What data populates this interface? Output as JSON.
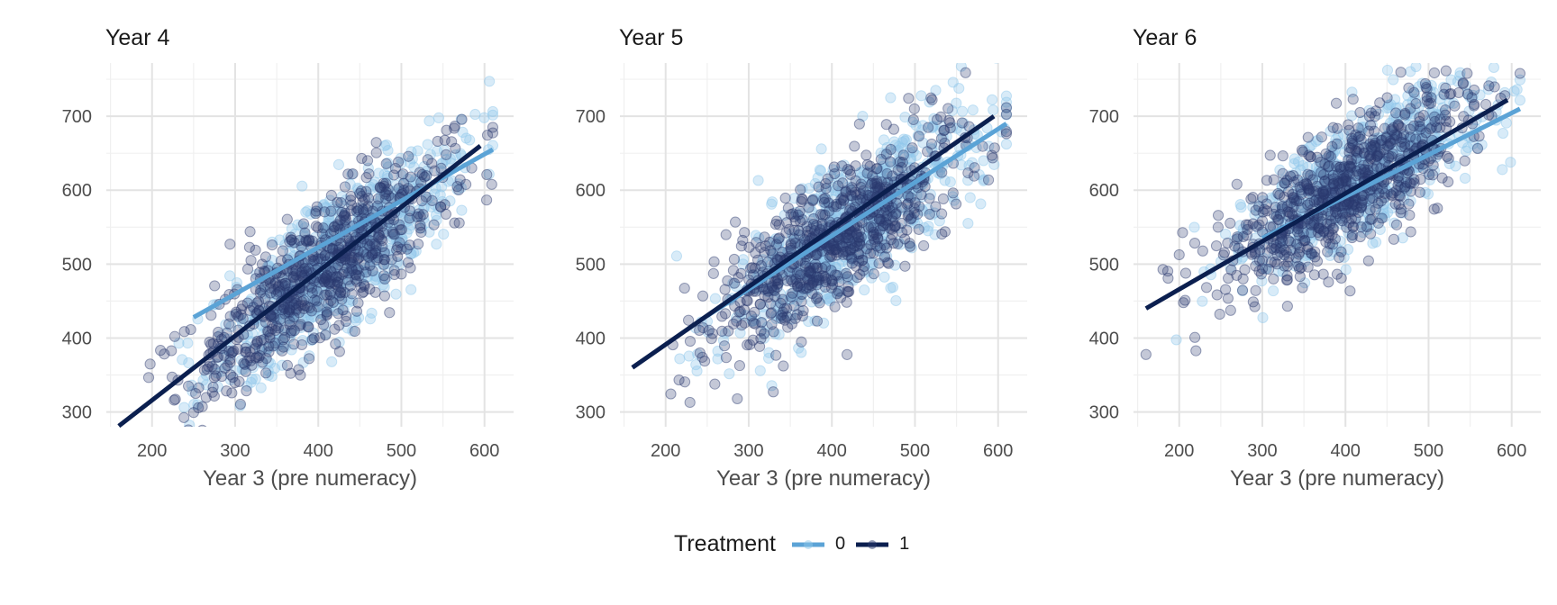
{
  "chart_data": [
    {
      "type": "scatter",
      "title": "Year 4",
      "xlabel": "Year 3 (pre numeracy)",
      "ylabel": "",
      "xlim": [
        145,
        635
      ],
      "ylim": [
        280,
        772
      ],
      "xticks": [
        "200",
        "300",
        "400",
        "500",
        "600"
      ],
      "yticks": [
        "300",
        "400",
        "500",
        "600",
        "700"
      ],
      "grid": true,
      "cloud": {
        "mean_x": 410,
        "sd_x": 75,
        "slope": 0.88,
        "intercept": 135,
        "resid_sd": 45,
        "x_range": [
          160,
          610
        ]
      },
      "series": [
        {
          "name": "0",
          "color": "#5ba3d6",
          "point_color": "#8ec7ea",
          "n": 700,
          "x_shift": 12,
          "fit": {
            "x": [
              250,
              610
            ],
            "y": [
              428,
              655
            ]
          }
        },
        {
          "name": "1",
          "color": "#0b1f4f",
          "point_color": "#2a3a6e",
          "n": 700,
          "x_shift": -8,
          "fit": {
            "x": [
              160,
              595
            ],
            "y": [
              281,
              660
            ]
          }
        }
      ]
    },
    {
      "type": "scatter",
      "title": "Year 5",
      "xlabel": "Year 3 (pre numeracy)",
      "ylabel": "",
      "xlim": [
        145,
        635
      ],
      "ylim": [
        280,
        772
      ],
      "xticks": [
        "200",
        "300",
        "400",
        "500",
        "600"
      ],
      "yticks": [
        "300",
        "400",
        "500",
        "600",
        "700"
      ],
      "grid": true,
      "cloud": {
        "mean_x": 410,
        "sd_x": 75,
        "slope": 0.76,
        "intercept": 230,
        "resid_sd": 45,
        "x_range": [
          160,
          610
        ]
      },
      "series": [
        {
          "name": "0",
          "color": "#5ba3d6",
          "point_color": "#8ec7ea",
          "n": 700,
          "x_shift": 12,
          "fit": {
            "x": [
              250,
              610
            ],
            "y": [
              430,
              690
            ]
          }
        },
        {
          "name": "1",
          "color": "#0b1f4f",
          "point_color": "#2a3a6e",
          "n": 700,
          "x_shift": -8,
          "fit": {
            "x": [
              160,
              595
            ],
            "y": [
              360,
              700
            ]
          }
        }
      ]
    },
    {
      "type": "scatter",
      "title": "Year 6",
      "xlabel": "Year 3 (pre numeracy)",
      "ylabel": "",
      "xlim": [
        145,
        635
      ],
      "ylim": [
        280,
        772
      ],
      "xticks": [
        "200",
        "300",
        "400",
        "500",
        "600"
      ],
      "yticks": [
        "300",
        "400",
        "500",
        "600",
        "700"
      ],
      "grid": true,
      "cloud": {
        "mean_x": 410,
        "sd_x": 75,
        "slope": 0.68,
        "intercept": 330,
        "resid_sd": 42,
        "x_range": [
          160,
          610
        ]
      },
      "series": [
        {
          "name": "0",
          "color": "#5ba3d6",
          "point_color": "#8ec7ea",
          "n": 700,
          "x_shift": 12,
          "fit": {
            "x": [
              300,
              610
            ],
            "y": [
              535,
              710
            ]
          }
        },
        {
          "name": "1",
          "color": "#0b1f4f",
          "point_color": "#2a3a6e",
          "n": 700,
          "x_shift": -8,
          "fit": {
            "x": [
              160,
              595
            ],
            "y": [
              440,
              722
            ]
          }
        }
      ]
    }
  ],
  "legend": {
    "title": "Treatment",
    "position": "bottom",
    "items": [
      {
        "label": "0",
        "color": "#5ba3d6"
      },
      {
        "label": "1",
        "color": "#0b1f4f"
      }
    ]
  }
}
